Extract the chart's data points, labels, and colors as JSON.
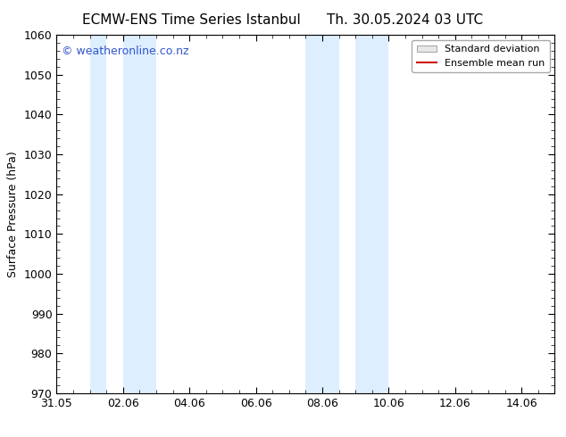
{
  "title": "ECMW-ENS Time Series Istanbul      Th. 30.05.2024 03 UTC",
  "ylabel": "Surface Pressure (hPa)",
  "ylim": [
    970,
    1060
  ],
  "yticks": [
    970,
    980,
    990,
    1000,
    1010,
    1020,
    1030,
    1040,
    1050,
    1060
  ],
  "x_tick_labels": [
    "31.05",
    "02.06",
    "04.06",
    "06.06",
    "08.06",
    "10.06",
    "12.06",
    "14.06"
  ],
  "x_tick_positions": [
    0,
    2,
    4,
    6,
    8,
    10,
    12,
    14
  ],
  "xlim": [
    0,
    15
  ],
  "shaded_bands": [
    {
      "x_start": 1.0,
      "x_end": 1.5
    },
    {
      "x_start": 2.0,
      "x_end": 3.0
    },
    {
      "x_start": 7.5,
      "x_end": 8.5
    },
    {
      "x_start": 9.0,
      "x_end": 10.0
    }
  ],
  "shaded_color": "#ddeeff",
  "watermark_text": "© weatheronline.co.nz",
  "watermark_color": "#3355cc",
  "watermark_fontsize": 9,
  "legend_std_label": "Standard deviation",
  "legend_ens_label": "Ensemble mean run",
  "legend_std_facecolor": "#e8e8e8",
  "legend_std_edgecolor": "#aaaaaa",
  "legend_ens_color": "#cc1100",
  "bg_color": "#ffffff",
  "tick_color": "#000000",
  "title_fontsize": 11,
  "ylabel_fontsize": 9,
  "tick_fontsize": 9,
  "legend_fontsize": 8
}
